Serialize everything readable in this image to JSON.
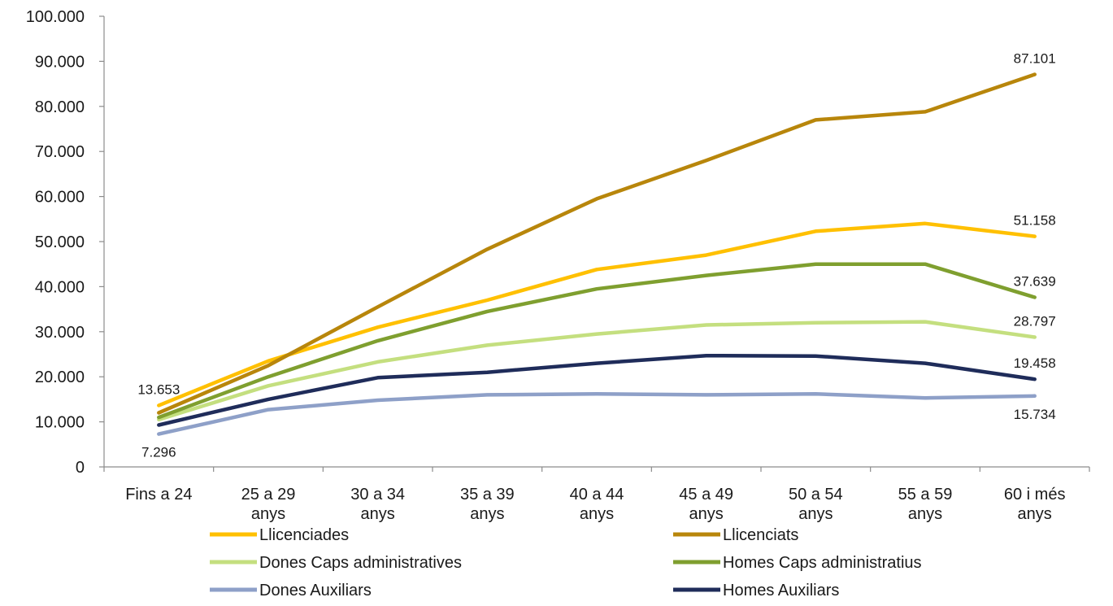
{
  "chart_data": {
    "type": "line",
    "title": "",
    "xlabel": "",
    "ylabel": "",
    "categories": [
      [
        "Fins a 24"
      ],
      [
        "25 a 29",
        "anys"
      ],
      [
        "30 a 34",
        "anys"
      ],
      [
        "35 a 39",
        "anys"
      ],
      [
        "40 a 44",
        "anys"
      ],
      [
        "45 a 49",
        "anys"
      ],
      [
        "50 a 54",
        "anys"
      ],
      [
        "55 a 59",
        "anys"
      ],
      [
        "60 i més",
        "anys"
      ]
    ],
    "ylim": [
      0,
      100000
    ],
    "yticks": [
      0,
      10000,
      20000,
      30000,
      40000,
      50000,
      60000,
      70000,
      80000,
      90000,
      100000
    ],
    "ytick_labels": [
      "0",
      "10.000",
      "20.000",
      "30.000",
      "40.000",
      "50.000",
      "60.000",
      "70.000",
      "80.000",
      "90.000",
      "100.000"
    ],
    "grid": false,
    "legend_position": "bottom",
    "series": [
      {
        "name": "Llicenciades",
        "color": "#FFC000",
        "values": [
          13653,
          23500,
          31000,
          37000,
          43800,
          47000,
          52300,
          54000,
          51158
        ]
      },
      {
        "name": "Llicenciats",
        "color": "#B8860B",
        "values": [
          12000,
          22500,
          35500,
          48300,
          59500,
          68000,
          77000,
          78800,
          87101
        ]
      },
      {
        "name": "Dones Caps administratives",
        "color": "#C4DF7F",
        "values": [
          10500,
          18000,
          23300,
          27000,
          29500,
          31500,
          32000,
          32200,
          28797
        ]
      },
      {
        "name": "Homes Caps administratius",
        "color": "#7F9F2F",
        "values": [
          11000,
          20000,
          28000,
          34500,
          39500,
          42500,
          45000,
          45000,
          37639
        ]
      },
      {
        "name": "Dones Auxiliars",
        "color": "#8EA0C8",
        "values": [
          7296,
          12700,
          14800,
          16000,
          16200,
          16000,
          16200,
          15300,
          15734
        ]
      },
      {
        "name": "Homes Auxiliars",
        "color": "#1F2C5A",
        "values": [
          9300,
          15000,
          19800,
          21000,
          23000,
          24700,
          24600,
          23000,
          19458
        ]
      }
    ],
    "annotations": [
      {
        "text": "87.101",
        "series": 1,
        "index": 8,
        "placement": "above"
      },
      {
        "text": "51.158",
        "series": 0,
        "index": 8,
        "placement": "above"
      },
      {
        "text": "37.639",
        "series": 3,
        "index": 8,
        "placement": "above"
      },
      {
        "text": "28.797",
        "series": 2,
        "index": 8,
        "placement": "above"
      },
      {
        "text": "19.458",
        "series": 5,
        "index": 8,
        "placement": "above"
      },
      {
        "text": "15.734",
        "series": 4,
        "index": 8,
        "placement": "below"
      },
      {
        "text": "13.653",
        "series": 0,
        "index": 0,
        "placement": "above"
      },
      {
        "text": "7.296",
        "series": 4,
        "index": 0,
        "placement": "below"
      }
    ]
  }
}
